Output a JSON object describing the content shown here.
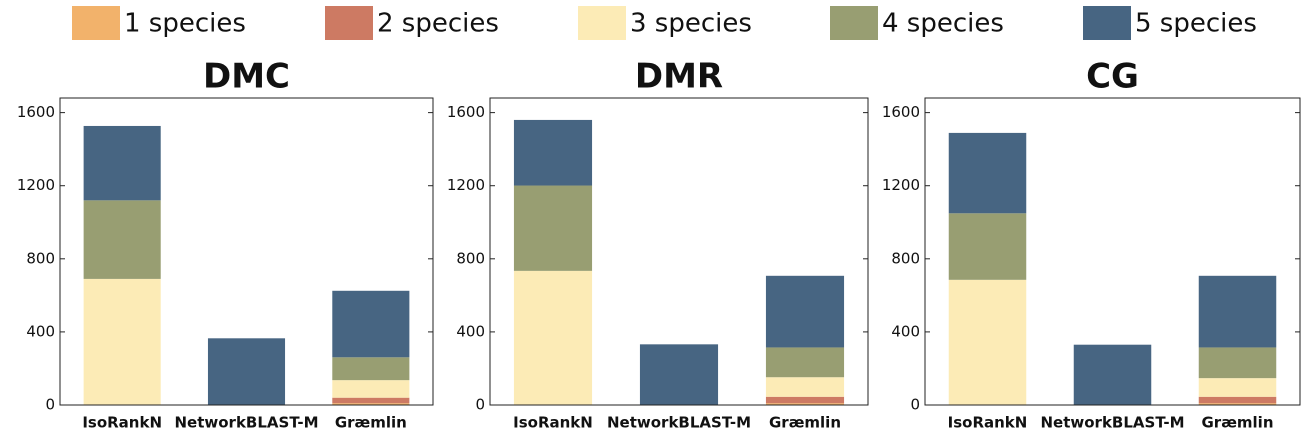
{
  "legend": {
    "series": [
      {
        "name": "1 species",
        "color": "#f2b26b"
      },
      {
        "name": "2 species",
        "color": "#cd7a63"
      },
      {
        "name": "3 species",
        "color": "#fcebb6"
      },
      {
        "name": "4 species",
        "color": "#989e72"
      },
      {
        "name": "5 species",
        "color": "#476582"
      }
    ]
  },
  "chart_data": [
    {
      "type": "bar",
      "stacked": true,
      "title": "DMC",
      "categories": [
        "IsoRankN",
        "NetworkBLAST-M",
        "Græmlin"
      ],
      "ylim": [
        0,
        1680
      ],
      "yticks": [
        0,
        400,
        800,
        1200,
        1600
      ],
      "series": [
        {
          "values": [
            0,
            0,
            10
          ]
        },
        {
          "values": [
            0,
            0,
            30
          ]
        },
        {
          "values": [
            690,
            0,
            96
          ]
        },
        {
          "values": [
            430,
            0,
            125
          ]
        },
        {
          "values": [
            407,
            365,
            364
          ]
        }
      ]
    },
    {
      "type": "bar",
      "stacked": true,
      "title": "DMR",
      "categories": [
        "IsoRankN",
        "NetworkBLAST-M",
        "Græmlin"
      ],
      "ylim": [
        0,
        1680
      ],
      "yticks": [
        0,
        400,
        800,
        1200,
        1600
      ],
      "series": [
        {
          "values": [
            0,
            0,
            10
          ]
        },
        {
          "values": [
            0,
            0,
            35
          ]
        },
        {
          "values": [
            734,
            0,
            107
          ]
        },
        {
          "values": [
            467,
            0,
            163
          ]
        },
        {
          "values": [
            359,
            332,
            392
          ]
        }
      ]
    },
    {
      "type": "bar",
      "stacked": true,
      "title": "CG",
      "categories": [
        "IsoRankN",
        "NetworkBLAST-M",
        "Græmlin"
      ],
      "ylim": [
        0,
        1680
      ],
      "yticks": [
        0,
        400,
        800,
        1200,
        1600
      ],
      "series": [
        {
          "values": [
            0,
            0,
            10
          ]
        },
        {
          "values": [
            0,
            0,
            35
          ]
        },
        {
          "values": [
            685,
            0,
            102
          ]
        },
        {
          "values": [
            364,
            0,
            168
          ]
        },
        {
          "values": [
            440,
            330,
            392
          ]
        }
      ]
    }
  ]
}
